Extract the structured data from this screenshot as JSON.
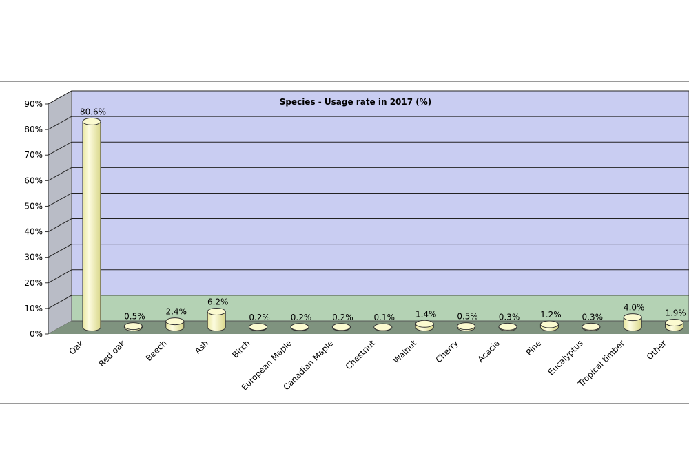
{
  "chart_data": {
    "type": "bar",
    "title": "Species - Usage rate in 2017 (%)",
    "categories": [
      "Oak",
      "Red oak",
      "Beech",
      "Ash",
      "Birch",
      "European Maple",
      "Canadian Maple",
      "Chestnut",
      "Walnut",
      "Cherry",
      "Acacia",
      "Pine",
      "Eucalyptus",
      "Tropical timber",
      "Other"
    ],
    "values": [
      80.6,
      0.5,
      2.4,
      6.2,
      0.2,
      0.2,
      0.2,
      0.1,
      1.4,
      0.5,
      0.3,
      1.2,
      0.3,
      4.0,
      1.9
    ],
    "data_labels": [
      "80.6%",
      "0.5%",
      "2.4%",
      "6.2%",
      "0.2%",
      "0.2%",
      "0.2%",
      "0.1%",
      "1.4%",
      "0.5%",
      "0.3%",
      "1.2%",
      "0.3%",
      "4.0%",
      "1.9%"
    ],
    "y_ticks": [
      "0%",
      "10%",
      "20%",
      "30%",
      "40%",
      "50%",
      "60%",
      "70%",
      "80%",
      "90%"
    ],
    "ylim": [
      0,
      90
    ],
    "grid": true,
    "bar_shape": "cylinder-3d",
    "colors": {
      "bar_fill": "#f7f5b4",
      "bar_top": "#fbfad0",
      "back_wall": "#c9cdf2",
      "back_wall_low_band": "#b4d2b4",
      "side_wall": "#b9bcc6",
      "floor": "#7f937f"
    }
  }
}
